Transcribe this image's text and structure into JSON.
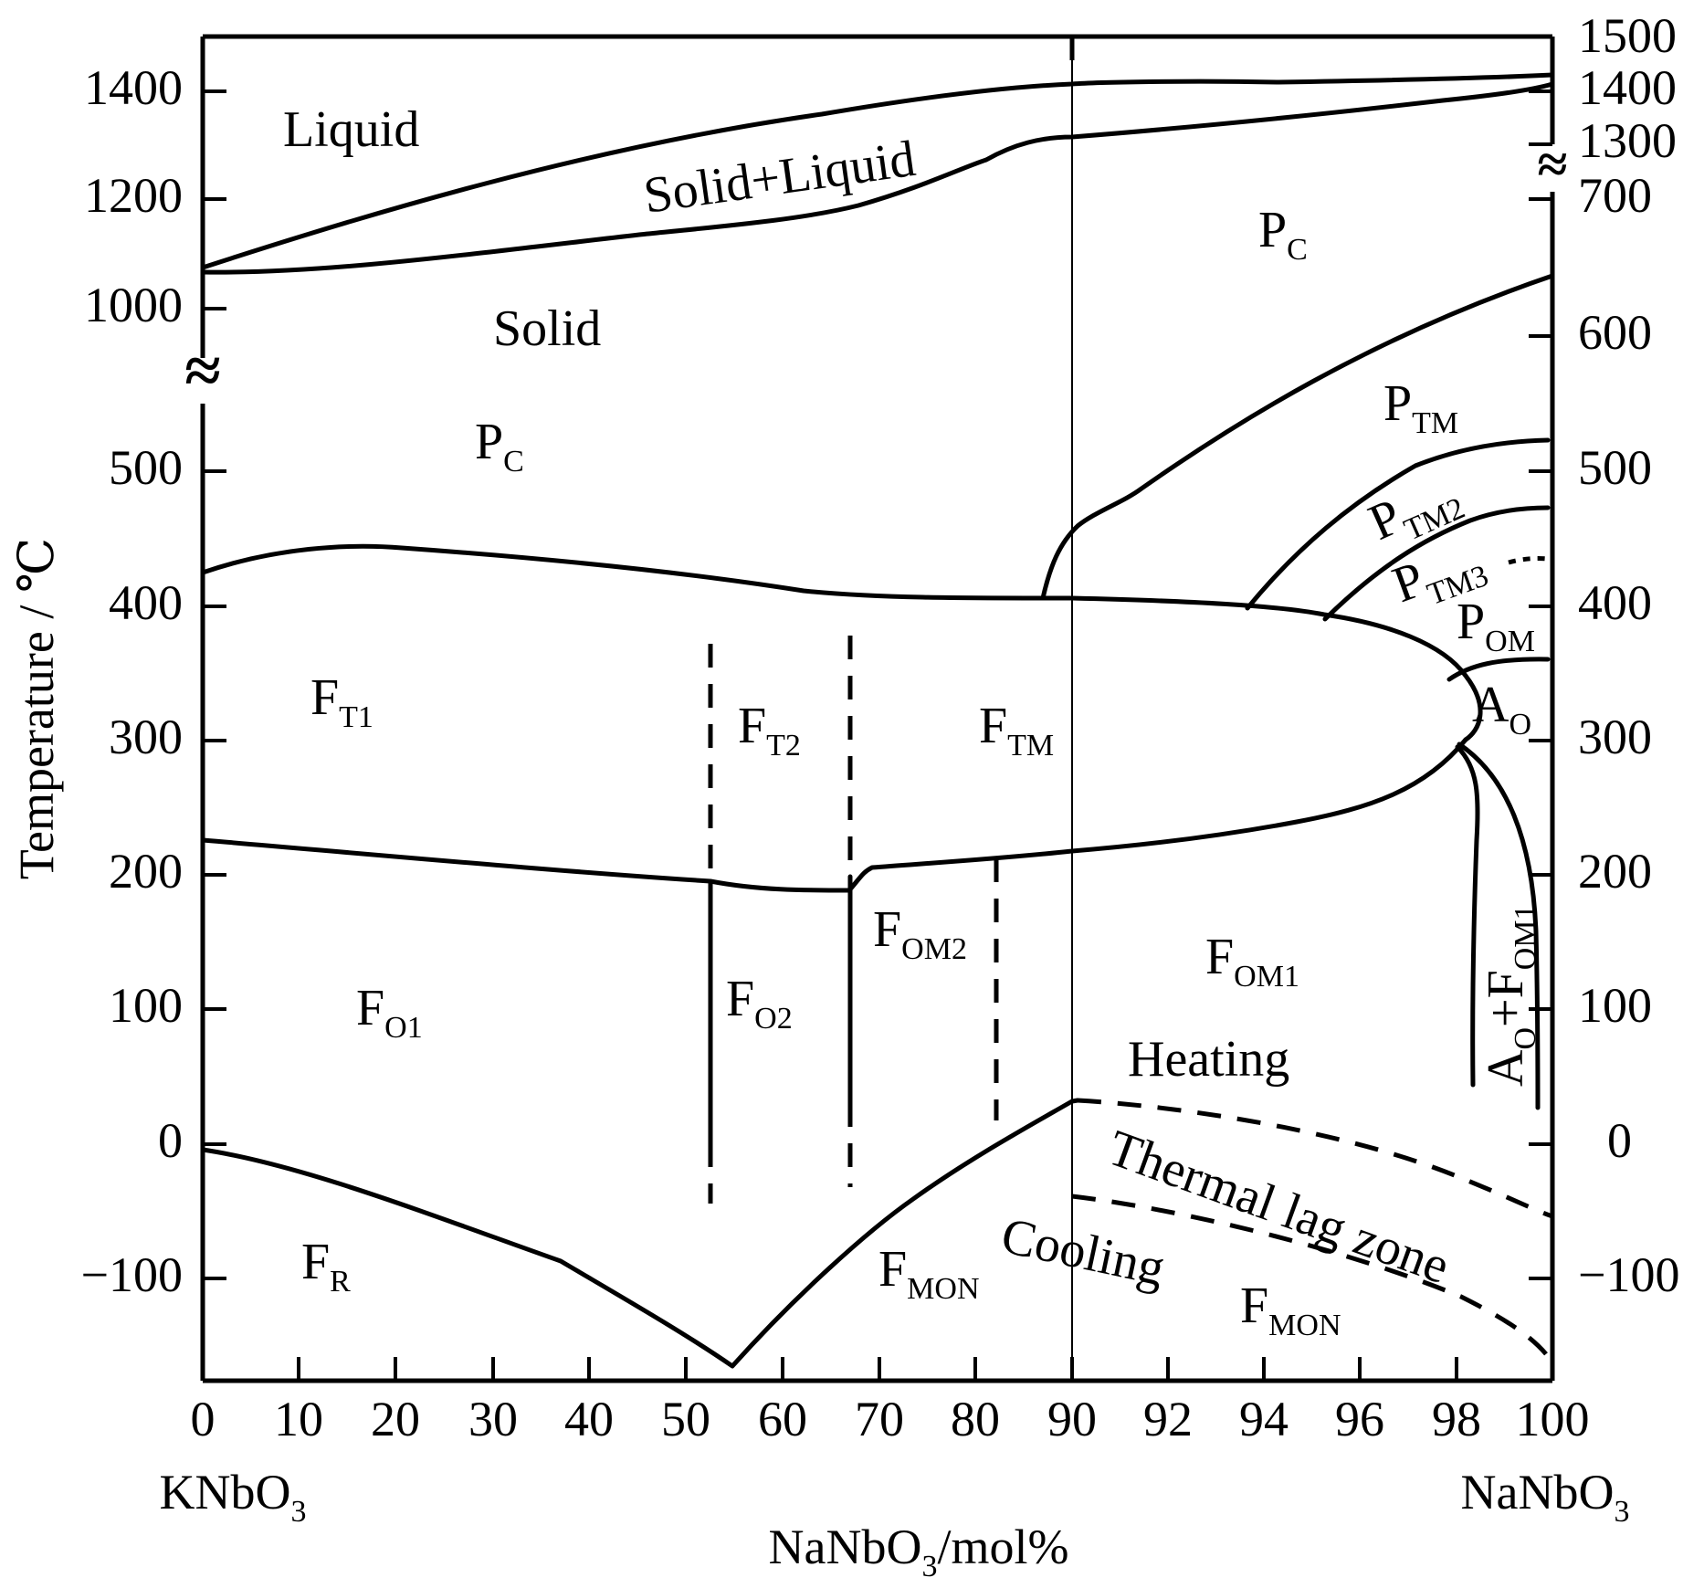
{
  "axes": {
    "y_title": "Temperature / ℃",
    "x_title": {
      "base": "NaNbO",
      "sub": "3",
      "rest": "/mol%"
    },
    "left_end": {
      "base": "KNbO",
      "sub": "3"
    },
    "right_end": {
      "base": "NaNbO",
      "sub": "3"
    },
    "x_ticks": [
      "0",
      "10",
      "20",
      "30",
      "40",
      "50",
      "60",
      "70",
      "80",
      "90",
      "92",
      "94",
      "96",
      "98",
      "100"
    ],
    "y_left_ticks": [
      "1400",
      "1200",
      "1000",
      "500",
      "400",
      "300",
      "200",
      "100",
      "0",
      "−100"
    ],
    "y_right_ticks": [
      "1500",
      "1400",
      "1300",
      "700",
      "600",
      "500",
      "400",
      "300",
      "200",
      "100",
      "0",
      "−100"
    ],
    "break_symbol": "≈"
  },
  "regions": [
    {
      "id": "liquid",
      "base": "Liquid",
      "sub": ""
    },
    {
      "id": "solid-liquid",
      "base": "Solid+Liquid",
      "sub": ""
    },
    {
      "id": "solid",
      "base": "Solid",
      "sub": ""
    },
    {
      "id": "pc-left",
      "base": "P",
      "sub": "C"
    },
    {
      "id": "pc-right",
      "base": "P",
      "sub": "C"
    },
    {
      "id": "ptm",
      "base": "P",
      "sub": "TM"
    },
    {
      "id": "ptm2",
      "base": "P",
      "sub": "TM2"
    },
    {
      "id": "ptm3",
      "base": "P",
      "sub": "TM3"
    },
    {
      "id": "pom",
      "base": "P",
      "sub": "OM"
    },
    {
      "id": "ao",
      "base": "A",
      "sub": "O"
    },
    {
      "id": "ft1",
      "base": "F",
      "sub": "T1"
    },
    {
      "id": "ft2",
      "base": "F",
      "sub": "T2"
    },
    {
      "id": "ftm",
      "base": "F",
      "sub": "TM"
    },
    {
      "id": "fom2",
      "base": "F",
      "sub": "OM2"
    },
    {
      "id": "fom1",
      "base": "F",
      "sub": "OM1"
    },
    {
      "id": "fo1",
      "base": "F",
      "sub": "O1"
    },
    {
      "id": "fo2",
      "base": "F",
      "sub": "O2"
    },
    {
      "id": "fr",
      "base": "F",
      "sub": "R"
    },
    {
      "id": "fmon-left",
      "base": "F",
      "sub": "MON"
    },
    {
      "id": "fmon-right",
      "base": "F",
      "sub": "MON"
    },
    {
      "id": "ao-fom1",
      "base": "A",
      "sub": "O",
      "plus": "+F",
      "sub2": "OM1"
    }
  ],
  "annotations": {
    "heating": "Heating",
    "cooling": "Cooling",
    "thermal_lag": "Thermal lag zone"
  }
}
